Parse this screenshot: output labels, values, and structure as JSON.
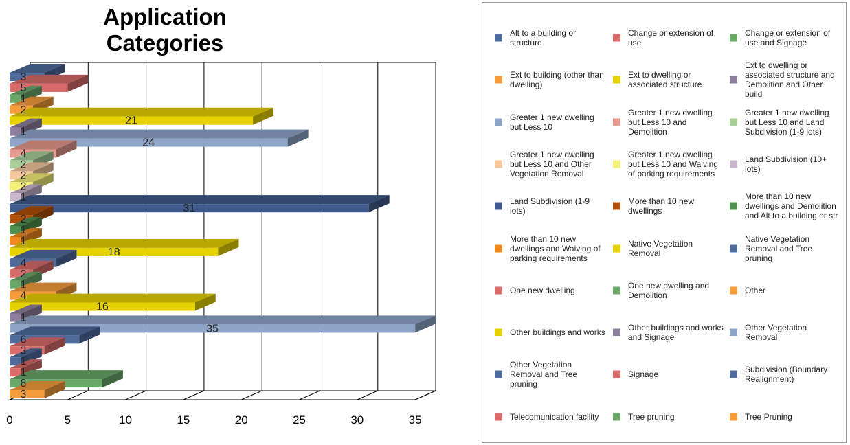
{
  "chart_data": {
    "type": "bar",
    "title": "Application Categories",
    "orientation": "horizontal",
    "style": "3d",
    "xlim": [
      0,
      35
    ],
    "x_ticks": [
      0,
      5,
      10,
      15,
      20,
      25,
      30,
      35
    ],
    "grid": "vertical",
    "legend_position": "right",
    "categories": [
      "Alt to a building or structure",
      "Change or extension of use",
      "Change or extension of use and Signage",
      "Ext to building (other than dwelling)",
      "Ext to dwelling or associated structure",
      "Ext to dwelling or associated structure and Demolition and Other build",
      "Greater 1 new dwelling but Less 10",
      "Greater 1 new dwelling but Less 10 and Demolition",
      "Greater 1 new dwelling but Less 10 and Land Subdivision (1-9 lots)",
      "Greater 1 new dwelling but Less 10 and Other Vegetation Removal",
      "Greater 1 new dwelling but Less 10 and Waiving of parking requirements",
      "Land Subdivision (10+ lots)",
      "Land Subdivision (1-9 lots)",
      "More than 10 new dwellings",
      "More than 10 new dwellings and Demolition and Alt to a building or str",
      "More than 10 new dwellings and Waiving of parking requirements",
      "Native Vegetation Removal",
      "Native Vegetation Removal and Tree pruning",
      "One new dwelling",
      "One new dwelling and Demolition",
      "Other",
      "Other buildings and works",
      "Other buildings and works and Signage",
      "Other Vegetation Removal",
      "Other Vegetation Removal and Tree pruning",
      "Signage",
      "Subdivision (Boundary Realignment)",
      "Telecomunication facility",
      "Tree pruning",
      "Tree Pruning"
    ],
    "values": [
      3,
      5,
      1,
      2,
      21,
      1,
      24,
      4,
      2,
      2,
      2,
      1,
      31,
      2,
      1,
      1,
      18,
      4,
      2,
      1,
      4,
      16,
      1,
      35,
      6,
      3,
      1,
      1,
      8,
      3
    ],
    "colors": [
      "#4f6b9c",
      "#d96b6b",
      "#6aa86a",
      "#f59c3c",
      "#e6d200",
      "#8e7ea0",
      "#8ea5c8",
      "#e69a8e",
      "#a8cf9a",
      "#f5c89e",
      "#f5f07a",
      "#c8b6cc",
      "#3f5a8a",
      "#b05008",
      "#4f8f4f",
      "#f08a20",
      "#e6d200",
      "#4f6b9c",
      "#d96b6b",
      "#6aa86a",
      "#f59c3c",
      "#e6d200",
      "#8e7ea0",
      "#8ea5c8",
      "#4f6b9c",
      "#d96b6b",
      "#4f6b9c",
      "#d96b6b",
      "#6aa86a",
      "#f59c3c"
    ]
  }
}
